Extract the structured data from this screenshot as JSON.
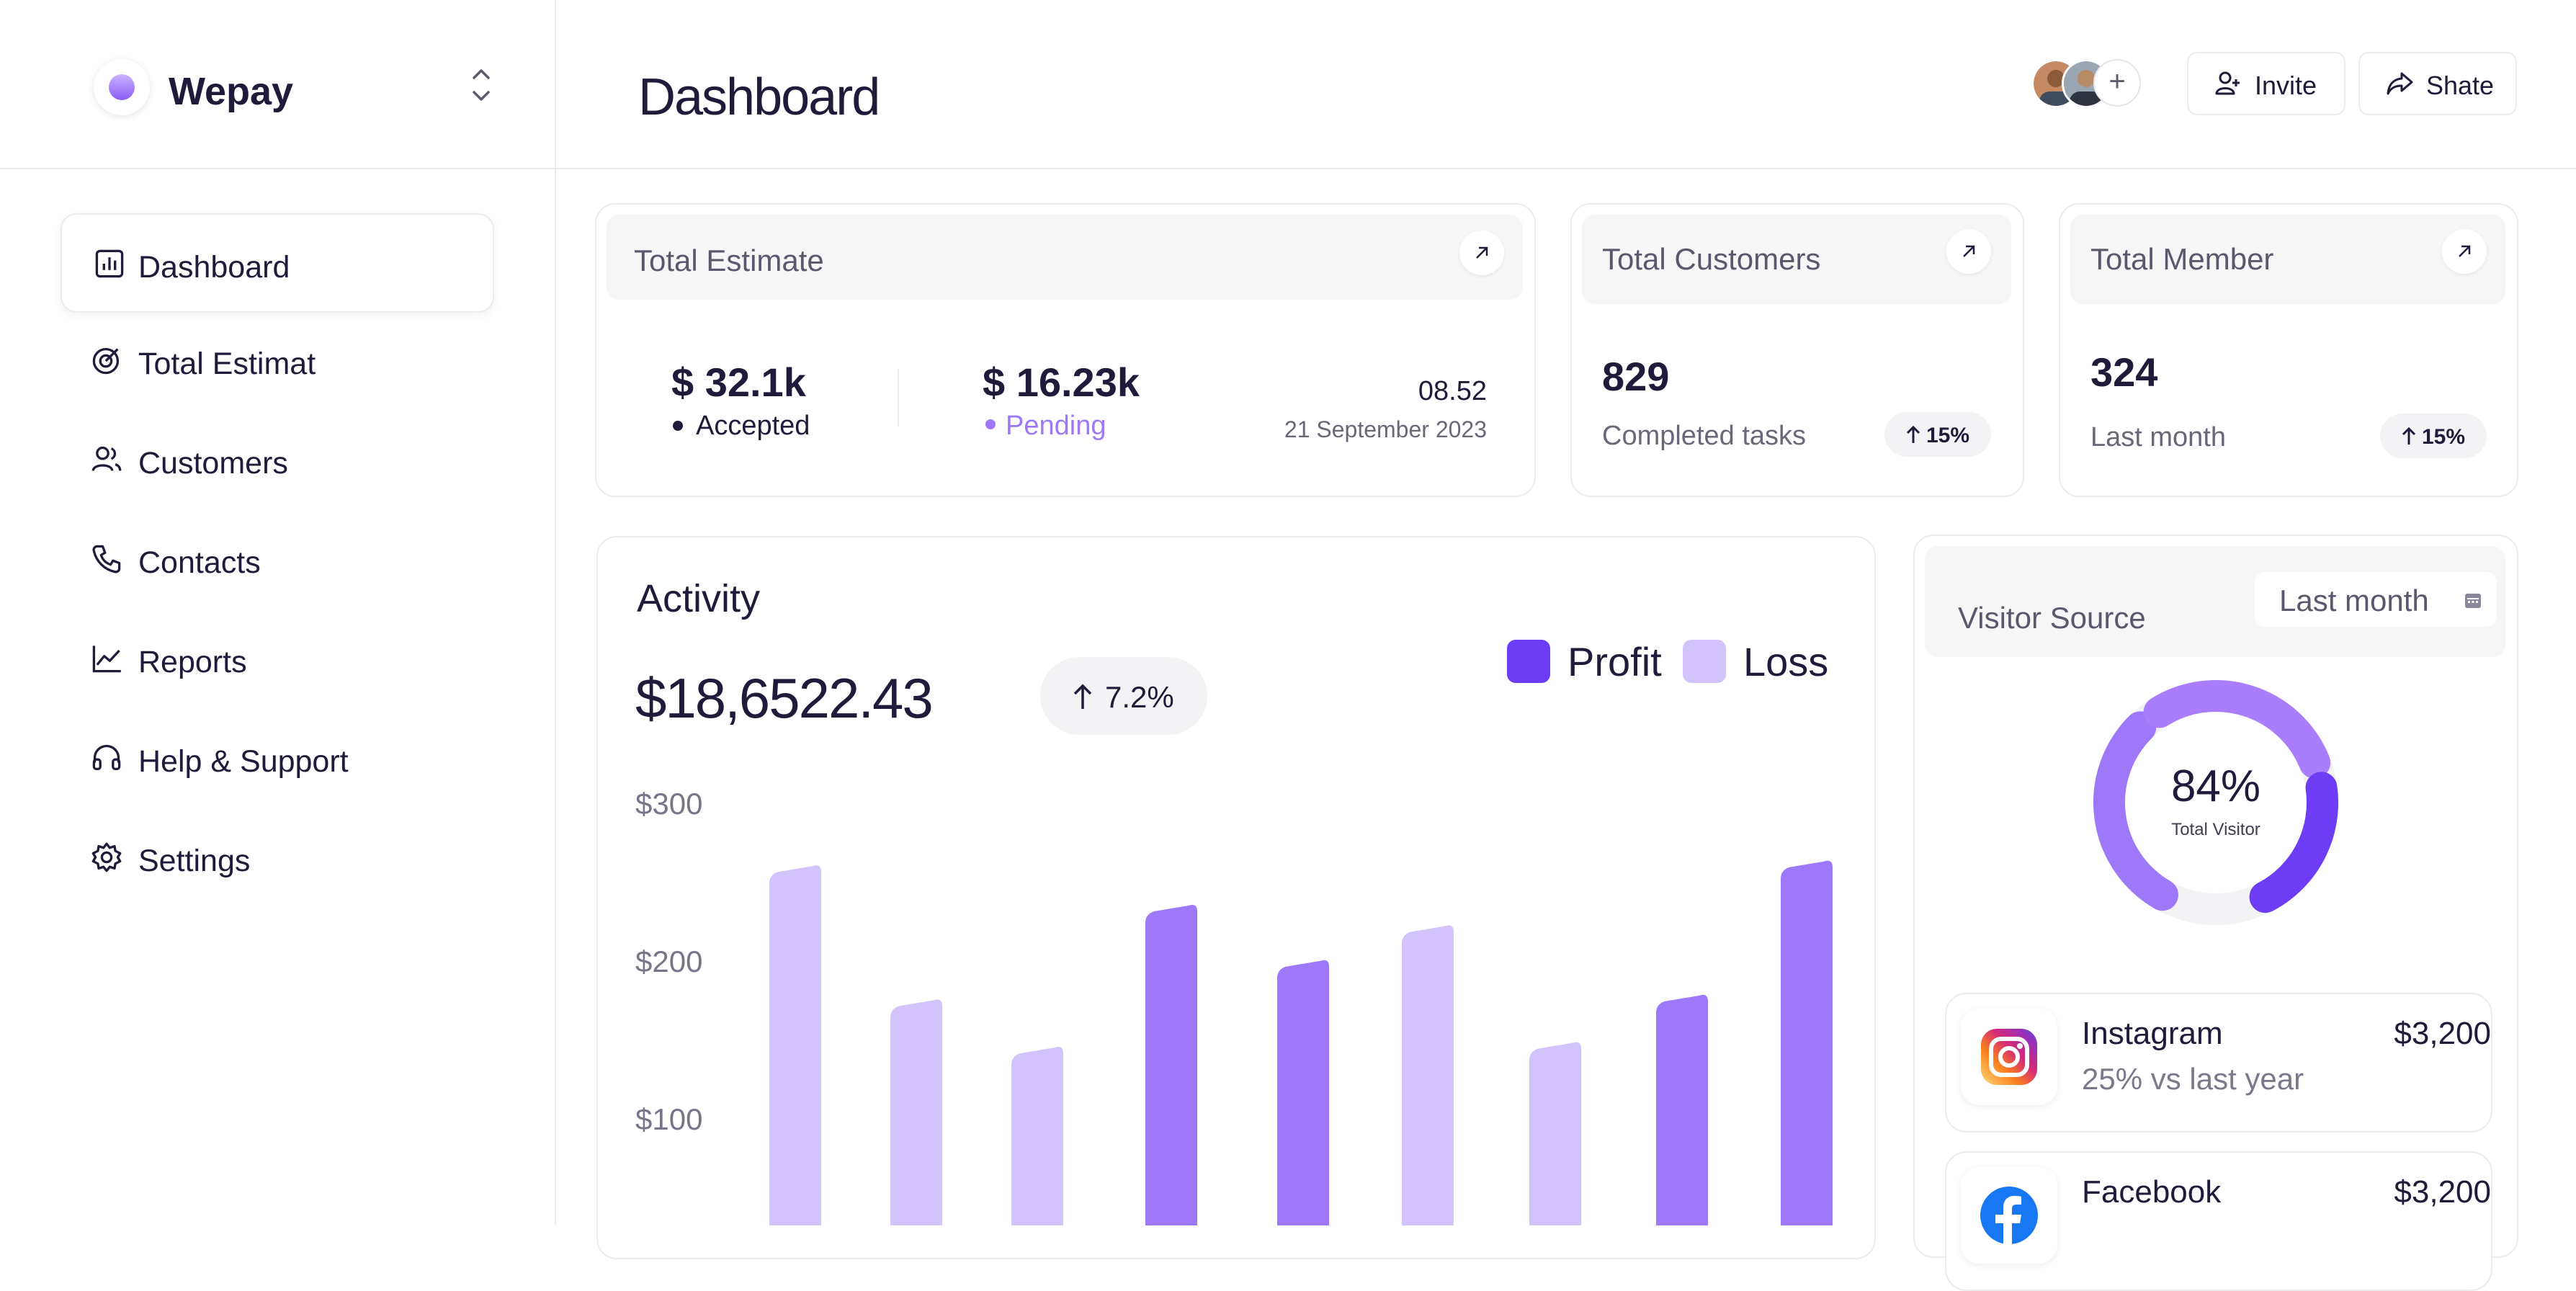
{
  "brand": {
    "name": "Wepay"
  },
  "sidebar": {
    "items": [
      {
        "label": "Dashboard",
        "icon": "bar-chart-icon",
        "active": true
      },
      {
        "label": "Total Estimat",
        "icon": "target-icon"
      },
      {
        "label": "Customers",
        "icon": "users-icon"
      },
      {
        "label": "Contacts",
        "icon": "phone-icon"
      },
      {
        "label": "Reports",
        "icon": "trend-line-icon"
      },
      {
        "label": "Help & Support",
        "icon": "headphones-icon"
      },
      {
        "label": "Settings",
        "icon": "gear-icon"
      }
    ]
  },
  "header": {
    "title": "Dashboard",
    "add_member": "+",
    "invite_label": "Invite",
    "share_label": "Shate"
  },
  "total_estimate": {
    "title": "Total Estimate",
    "accepted_value": "$ 32.1k",
    "accepted_label": "Accepted",
    "pending_value": "$ 16.23k",
    "pending_label": "Pending",
    "time": "08.52",
    "date": "21 September 2023"
  },
  "total_customers": {
    "title": "Total Customers",
    "value": "829",
    "caption": "Completed tasks",
    "change": "15%"
  },
  "total_member": {
    "title": "Total Member",
    "value": "324",
    "caption": "Last month",
    "change": "15%"
  },
  "activity": {
    "title": "Activity",
    "amount": "$18,6522.43",
    "change": "7.2%",
    "legend": {
      "profit": "Profit",
      "loss": "Loss"
    },
    "colors": {
      "profit": "#6c3df4",
      "loss": "#d2c3fb",
      "bar_profit": "#9d78f9"
    }
  },
  "chart_data": {
    "type": "bar",
    "title": "Activity",
    "y_ticks": [
      "$300",
      "$200",
      "$100"
    ],
    "ylim": [
      0,
      300
    ],
    "legend_position": "top-right",
    "series_names": [
      "Profit",
      "Loss"
    ],
    "bars": [
      {
        "value": 230,
        "series": "Loss"
      },
      {
        "value": 145,
        "series": "Loss"
      },
      {
        "value": 115,
        "series": "Loss"
      },
      {
        "value": 205,
        "series": "Profit"
      },
      {
        "value": 170,
        "series": "Profit"
      },
      {
        "value": 192,
        "series": "Loss"
      },
      {
        "value": 118,
        "series": "Loss"
      },
      {
        "value": 148,
        "series": "Profit"
      },
      {
        "value": 233,
        "series": "Profit"
      }
    ]
  },
  "visitor_source": {
    "title": "Visitor Source",
    "period": "Last month",
    "percent": "84%",
    "percent_caption": "Total Visitor",
    "donut": {
      "value": 0.84
    },
    "sources": [
      {
        "name": "Instagram",
        "sub": "25% vs last year",
        "value": "$3,200",
        "icon": "instagram-icon"
      },
      {
        "name": "Facebook",
        "sub": "",
        "value": "$3,200",
        "icon": "facebook-icon"
      }
    ]
  }
}
